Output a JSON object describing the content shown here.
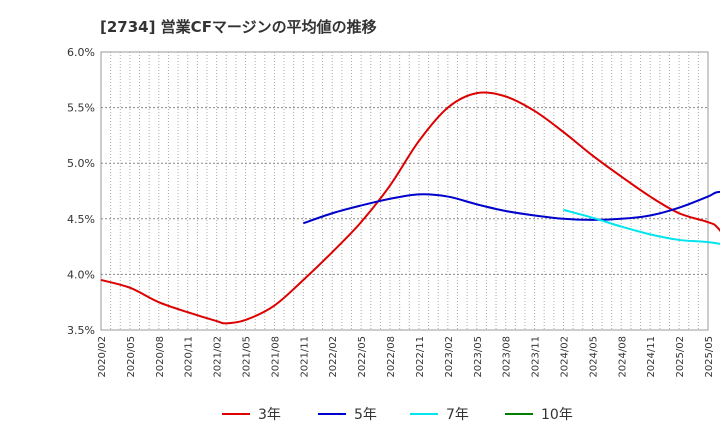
{
  "chart_data": {
    "type": "line",
    "title": "[2734]  営業CFマージンの平均値の推移",
    "ylim": [
      3.5,
      6.0
    ],
    "y_ticks": [
      "3.5%",
      "4.0%",
      "4.5%",
      "5.0%",
      "5.5%",
      "6.0%"
    ],
    "y_tick_values": [
      3.5,
      4.0,
      4.5,
      5.0,
      5.5,
      6.0
    ],
    "x_ticks": [
      "2020/02",
      "2020/05",
      "2020/08",
      "2020/11",
      "2021/02",
      "2021/05",
      "2021/08",
      "2021/11",
      "2022/02",
      "2022/05",
      "2022/08",
      "2022/11",
      "2023/02",
      "2023/05",
      "2023/08",
      "2023/11",
      "2024/02",
      "2024/05",
      "2024/08",
      "2024/11",
      "2025/02",
      "2025/05"
    ],
    "grid": true,
    "legend_position": "bottom",
    "series": [
      {
        "name": "3年",
        "color": "#dd0000",
        "points": [
          [
            "2020/02",
            3.95
          ],
          [
            "2020/05",
            3.88
          ],
          [
            "2020/08",
            3.75
          ],
          [
            "2020/11",
            3.66
          ],
          [
            "2021/02",
            3.58
          ],
          [
            "2021/03",
            3.56
          ],
          [
            "2021/05",
            3.59
          ],
          [
            "2021/08",
            3.72
          ],
          [
            "2021/11",
            3.95
          ],
          [
            "2022/02",
            4.2
          ],
          [
            "2022/05",
            4.47
          ],
          [
            "2022/08",
            4.8
          ],
          [
            "2022/11",
            5.2
          ],
          [
            "2023/02",
            5.5
          ],
          [
            "2023/05",
            5.63
          ],
          [
            "2023/08",
            5.6
          ],
          [
            "2023/11",
            5.47
          ],
          [
            "2024/02",
            5.28
          ],
          [
            "2024/05",
            5.07
          ],
          [
            "2024/08",
            4.88
          ],
          [
            "2024/11",
            4.7
          ],
          [
            "2025/02",
            4.55
          ],
          [
            "2025/05",
            4.47
          ],
          [
            "2025/06",
            4.42
          ],
          [
            "2025/08",
            4.2
          ]
        ]
      },
      {
        "name": "5年",
        "color": "#0000cc",
        "points": [
          [
            "2021/11",
            4.46
          ],
          [
            "2022/02",
            4.55
          ],
          [
            "2022/05",
            4.62
          ],
          [
            "2022/08",
            4.68
          ],
          [
            "2022/11",
            4.72
          ],
          [
            "2023/02",
            4.7
          ],
          [
            "2023/05",
            4.63
          ],
          [
            "2023/08",
            4.57
          ],
          [
            "2023/11",
            4.53
          ],
          [
            "2024/02",
            4.5
          ],
          [
            "2024/05",
            4.49
          ],
          [
            "2024/08",
            4.5
          ],
          [
            "2024/11",
            4.53
          ],
          [
            "2025/02",
            4.6
          ],
          [
            "2025/05",
            4.7
          ],
          [
            "2025/06",
            4.74
          ],
          [
            "2025/08",
            4.74
          ]
        ]
      },
      {
        "name": "7年",
        "color": "#00e5ee",
        "points": [
          [
            "2024/02",
            4.58
          ],
          [
            "2024/05",
            4.51
          ],
          [
            "2024/08",
            4.43
          ],
          [
            "2024/11",
            4.36
          ],
          [
            "2025/02",
            4.31
          ],
          [
            "2025/05",
            4.29
          ],
          [
            "2025/08",
            4.25
          ]
        ]
      },
      {
        "name": "10年",
        "color": "#008000",
        "points": []
      }
    ]
  }
}
